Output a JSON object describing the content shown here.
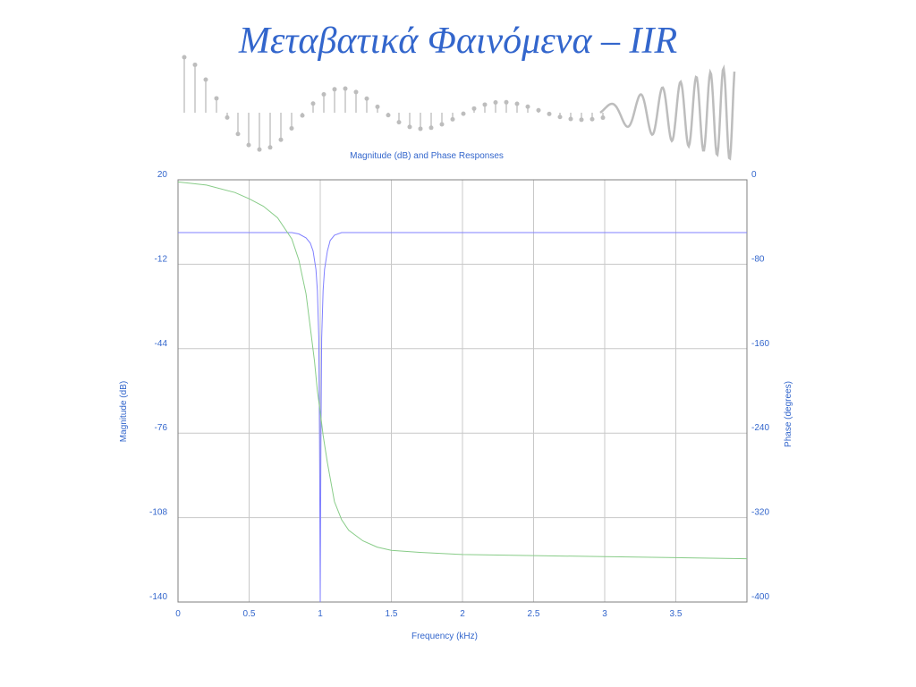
{
  "slide": {
    "title": "Μεταβατικά Φαινόμενα – IIR"
  },
  "banner": {
    "icon": "impulse-response-stem-plot-graphic"
  },
  "chart_data": {
    "type": "line",
    "title": "Magnitude (dB) and Phase Responses",
    "xlabel": "Frequency (kHz)",
    "ylabel_left": "Magnitude (dB)",
    "ylabel_right": "Phase (degrees)",
    "xlim": [
      0,
      4
    ],
    "ylim_left": [
      -140,
      20
    ],
    "ylim_right": [
      -400,
      0
    ],
    "x_ticks": [
      "0",
      "0.5",
      "1",
      "1.5",
      "2",
      "2.5",
      "3",
      "3.5"
    ],
    "y_ticks_left": [
      "20",
      "-12",
      "-44",
      "-76",
      "-108",
      "-140"
    ],
    "y_ticks_right": [
      "0",
      "-80",
      "-160",
      "-240",
      "-320",
      "-400"
    ],
    "grid": true,
    "colors": {
      "magnitude": "#8080ff",
      "phase": "#88cc88",
      "text": "#3366cc",
      "grid": "#c8c8c8"
    },
    "series": [
      {
        "axis": "left",
        "x": [
          0,
          0.5,
          0.8,
          0.85,
          0.9,
          0.93,
          0.95,
          0.97,
          0.98,
          0.99,
          0.995,
          1.0,
          1.005,
          1.01,
          1.02,
          1.03,
          1.05,
          1.07,
          1.1,
          1.15,
          2.0,
          4.0
        ],
        "y": [
          0,
          0,
          0,
          -0.5,
          -2,
          -4,
          -7,
          -14,
          -22,
          -40,
          -78,
          -140,
          -78,
          -40,
          -22,
          -14,
          -7,
          -3,
          -1,
          0,
          0,
          0
        ]
      },
      {
        "axis": "right",
        "x": [
          0,
          0.2,
          0.4,
          0.5,
          0.6,
          0.7,
          0.8,
          0.85,
          0.9,
          0.93,
          0.96,
          0.98,
          1.0,
          1.02,
          1.05,
          1.08,
          1.1,
          1.15,
          1.2,
          1.3,
          1.4,
          1.5,
          1.7,
          2.0,
          2.5,
          3.0,
          3.5,
          4.0
        ],
        "y": [
          -2,
          -5,
          -12,
          -18,
          -25,
          -36,
          -56,
          -76,
          -108,
          -140,
          -172,
          -200,
          -220,
          -242,
          -268,
          -290,
          -305,
          -322,
          -332,
          -342,
          -348,
          -351,
          -353,
          -355,
          -356,
          -357,
          -358,
          -359
        ]
      }
    ]
  }
}
